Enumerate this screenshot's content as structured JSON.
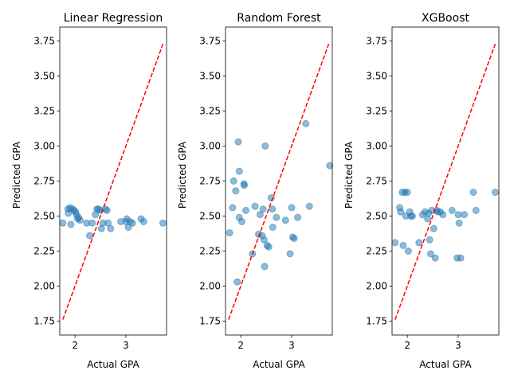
{
  "chart_data": [
    {
      "type": "scatter",
      "title": "Linear Regression",
      "xlabel": "Actual GPA",
      "ylabel": "Predicted GPA",
      "xlim": [
        1.7,
        3.8
      ],
      "ylim": [
        1.65,
        3.85
      ],
      "xticks": [
        2,
        3
      ],
      "yticks": [
        1.75,
        2.0,
        2.25,
        2.5,
        2.75,
        3.0,
        3.25,
        3.5,
        3.75
      ],
      "points": [
        [
          1.76,
          2.45
        ],
        [
          1.86,
          2.55
        ],
        [
          1.87,
          2.52
        ],
        [
          1.9,
          2.56
        ],
        [
          1.92,
          2.44
        ],
        [
          1.95,
          2.55
        ],
        [
          1.98,
          2.54
        ],
        [
          2.01,
          2.53
        ],
        [
          2.03,
          2.51
        ],
        [
          2.05,
          2.48
        ],
        [
          2.07,
          2.49
        ],
        [
          2.1,
          2.47
        ],
        [
          2.23,
          2.45
        ],
        [
          2.29,
          2.36
        ],
        [
          2.34,
          2.45
        ],
        [
          2.4,
          2.51
        ],
        [
          2.43,
          2.55
        ],
        [
          2.46,
          2.55
        ],
        [
          2.5,
          2.54
        ],
        [
          2.52,
          2.41
        ],
        [
          2.55,
          2.45
        ],
        [
          2.6,
          2.55
        ],
        [
          2.63,
          2.54
        ],
        [
          2.65,
          2.45
        ],
        [
          2.7,
          2.41
        ],
        [
          2.9,
          2.46
        ],
        [
          3.0,
          2.46
        ],
        [
          3.02,
          2.48
        ],
        [
          3.05,
          2.42
        ],
        [
          3.08,
          2.46
        ],
        [
          3.13,
          2.45
        ],
        [
          3.3,
          2.48
        ],
        [
          3.35,
          2.46
        ],
        [
          3.73,
          2.45
        ]
      ],
      "reference": [
        [
          1.76,
          1.76
        ],
        [
          3.73,
          3.73
        ]
      ]
    },
    {
      "type": "scatter",
      "title": "Random Forest",
      "xlabel": "Actual GPA",
      "ylabel": "Predicted GPA",
      "xlim": [
        1.7,
        3.8
      ],
      "ylim": [
        1.65,
        3.85
      ],
      "xticks": [
        2,
        3
      ],
      "yticks": [
        1.75,
        2.0,
        2.25,
        2.5,
        2.75,
        3.0,
        3.25,
        3.5,
        3.75
      ],
      "points": [
        [
          1.78,
          2.38
        ],
        [
          1.84,
          2.56
        ],
        [
          1.86,
          2.75
        ],
        [
          1.9,
          2.68
        ],
        [
          1.93,
          2.03
        ],
        [
          1.95,
          3.03
        ],
        [
          1.97,
          2.82
        ],
        [
          1.97,
          2.49
        ],
        [
          2.02,
          2.46
        ],
        [
          2.06,
          2.73
        ],
        [
          2.07,
          2.72
        ],
        [
          2.1,
          2.54
        ],
        [
          2.23,
          2.23
        ],
        [
          2.28,
          2.57
        ],
        [
          2.35,
          2.37
        ],
        [
          2.38,
          2.51
        ],
        [
          2.42,
          2.36
        ],
        [
          2.44,
          2.55
        ],
        [
          2.46,
          2.33
        ],
        [
          2.47,
          2.14
        ],
        [
          2.48,
          3.0
        ],
        [
          2.52,
          2.29
        ],
        [
          2.55,
          2.28
        ],
        [
          2.6,
          2.63
        ],
        [
          2.62,
          2.55
        ],
        [
          2.63,
          2.42
        ],
        [
          2.7,
          2.49
        ],
        [
          2.88,
          2.47
        ],
        [
          2.97,
          2.23
        ],
        [
          3.0,
          2.56
        ],
        [
          3.02,
          2.35
        ],
        [
          3.05,
          2.34
        ],
        [
          3.12,
          2.49
        ],
        [
          3.28,
          3.16
        ],
        [
          3.35,
          2.57
        ],
        [
          3.75,
          2.86
        ]
      ],
      "reference": [
        [
          1.76,
          1.76
        ],
        [
          3.73,
          3.73
        ]
      ]
    },
    {
      "type": "scatter",
      "title": "XGBoost",
      "xlabel": "Actual GPA",
      "ylabel": "Predicted GPA",
      "xlim": [
        1.7,
        3.8
      ],
      "ylim": [
        1.65,
        3.85
      ],
      "xticks": [
        2,
        3
      ],
      "yticks": [
        1.75,
        2.0,
        2.25,
        2.5,
        2.75,
        3.0,
        3.25,
        3.5,
        3.75
      ],
      "points": [
        [
          1.76,
          2.31
        ],
        [
          1.85,
          2.56
        ],
        [
          1.87,
          2.53
        ],
        [
          1.9,
          2.67
        ],
        [
          1.92,
          2.29
        ],
        [
          1.95,
          2.67
        ],
        [
          1.97,
          2.5
        ],
        [
          2.0,
          2.67
        ],
        [
          2.02,
          2.25
        ],
        [
          2.05,
          2.53
        ],
        [
          2.07,
          2.5
        ],
        [
          2.1,
          2.5
        ],
        [
          2.23,
          2.31
        ],
        [
          2.3,
          2.51
        ],
        [
          2.35,
          2.53
        ],
        [
          2.4,
          2.48
        ],
        [
          2.42,
          2.52
        ],
        [
          2.44,
          2.33
        ],
        [
          2.46,
          2.23
        ],
        [
          2.48,
          2.54
        ],
        [
          2.52,
          2.41
        ],
        [
          2.55,
          2.2
        ],
        [
          2.58,
          2.54
        ],
        [
          2.6,
          2.53
        ],
        [
          2.65,
          2.53
        ],
        [
          2.7,
          2.51
        ],
        [
          2.88,
          2.54
        ],
        [
          2.98,
          2.2
        ],
        [
          3.0,
          2.51
        ],
        [
          3.02,
          2.45
        ],
        [
          3.05,
          2.2
        ],
        [
          3.12,
          2.51
        ],
        [
          3.3,
          2.67
        ],
        [
          3.35,
          2.54
        ],
        [
          3.73,
          2.67
        ]
      ],
      "reference": [
        [
          1.76,
          1.76
        ],
        [
          3.73,
          3.73
        ]
      ]
    }
  ],
  "colors": {
    "points": "#1f77b4",
    "reference_line": "#ff0000",
    "axes": "#000000"
  }
}
